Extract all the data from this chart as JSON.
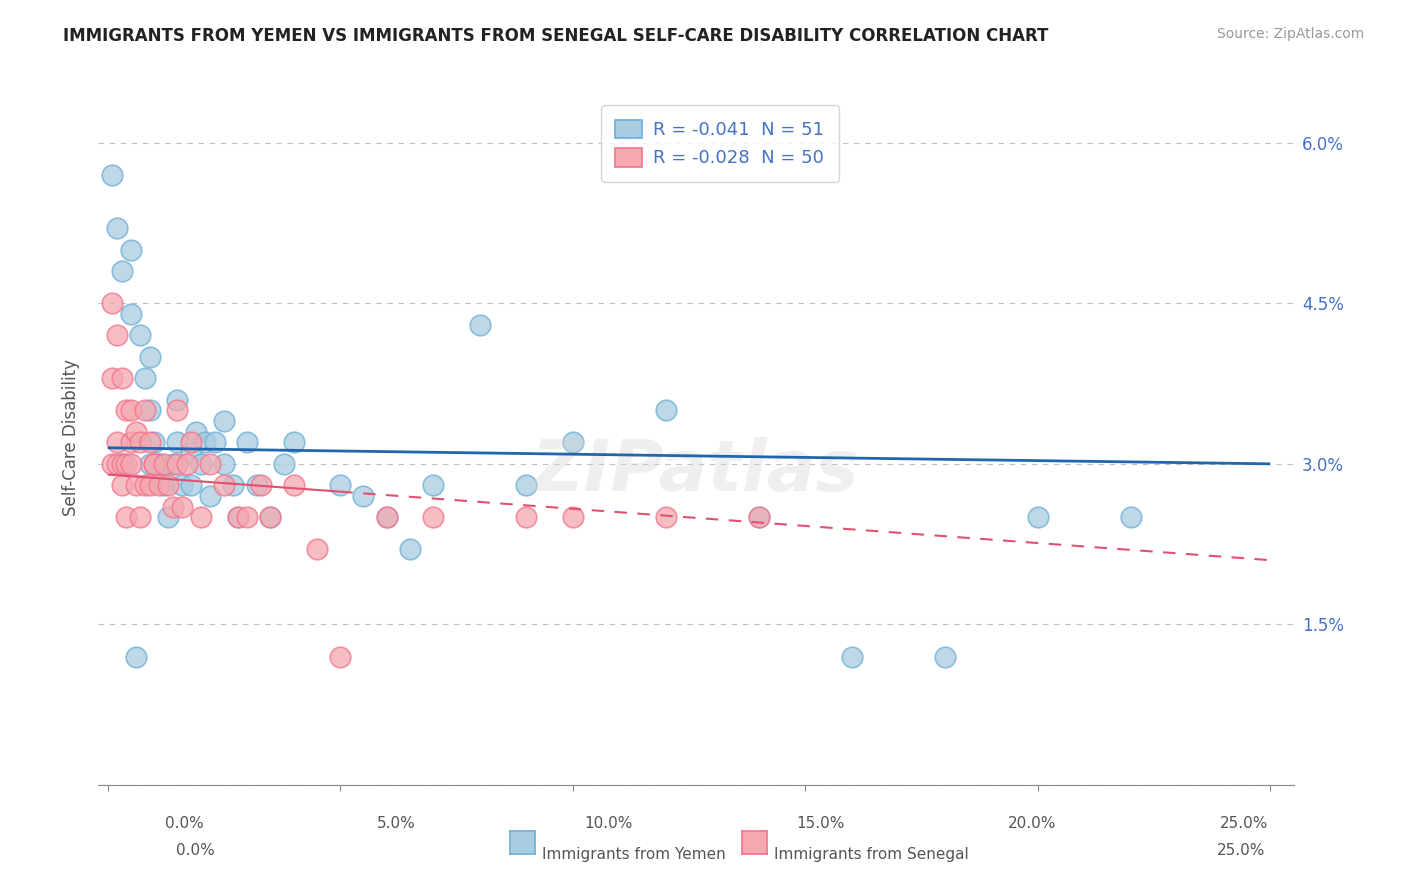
{
  "title": "IMMIGRANTS FROM YEMEN VS IMMIGRANTS FROM SENEGAL SELF-CARE DISABILITY CORRELATION CHART",
  "source": "Source: ZipAtlas.com",
  "ylabel": "Self-Care Disability",
  "xlim": [
    -0.002,
    0.255
  ],
  "ylim": [
    0.0,
    0.065
  ],
  "xticks": [
    0.0,
    0.05,
    0.1,
    0.15,
    0.2,
    0.25
  ],
  "xticklabels": [
    "0.0%",
    "5.0%",
    "10.0%",
    "15.0%",
    "20.0%",
    "25.0%"
  ],
  "yticks": [
    0.0,
    0.015,
    0.03,
    0.045,
    0.06
  ],
  "yticklabels_right": [
    "",
    "1.5%",
    "3.0%",
    "4.5%",
    "6.0%"
  ],
  "legend_r_yemen": "-0.041",
  "legend_n_yemen": "51",
  "legend_r_senegal": "-0.028",
  "legend_n_senegal": "50",
  "yemen_color": "#a8cce0",
  "senegal_color": "#f4a8b0",
  "yemen_edge_color": "#6baed6",
  "senegal_edge_color": "#f4728a",
  "trendline_yemen_color": "#2166ac",
  "trendline_senegal_color": "#e05070",
  "background_color": "#ffffff",
  "grid_color": "#bbbbbb",
  "right_axis_color": "#4472c4",
  "bottom_label_yemen": "Immigrants from Yemen",
  "bottom_label_senegal": "Immigrants from Senegal",
  "yemen_x": [
    0.001,
    0.002,
    0.003,
    0.005,
    0.005,
    0.007,
    0.008,
    0.009,
    0.009,
    0.01,
    0.011,
    0.012,
    0.013,
    0.015,
    0.015,
    0.016,
    0.018,
    0.018,
    0.019,
    0.02,
    0.021,
    0.022,
    0.023,
    0.025,
    0.025,
    0.027,
    0.028,
    0.03,
    0.032,
    0.035,
    0.038,
    0.05,
    0.055,
    0.06,
    0.065,
    0.07,
    0.08,
    0.09,
    0.1,
    0.12,
    0.14,
    0.16,
    0.18,
    0.2,
    0.22,
    0.003,
    0.006,
    0.009,
    0.011,
    0.014,
    0.04
  ],
  "yemen_y": [
    0.057,
    0.052,
    0.048,
    0.05,
    0.044,
    0.042,
    0.038,
    0.035,
    0.04,
    0.032,
    0.03,
    0.028,
    0.025,
    0.036,
    0.032,
    0.028,
    0.031,
    0.028,
    0.033,
    0.03,
    0.032,
    0.027,
    0.032,
    0.03,
    0.034,
    0.028,
    0.025,
    0.032,
    0.028,
    0.025,
    0.03,
    0.028,
    0.027,
    0.025,
    0.022,
    0.028,
    0.043,
    0.028,
    0.032,
    0.035,
    0.025,
    0.012,
    0.012,
    0.025,
    0.025,
    0.03,
    0.012,
    0.03,
    0.03,
    0.03,
    0.032
  ],
  "senegal_x": [
    0.001,
    0.001,
    0.002,
    0.002,
    0.003,
    0.003,
    0.004,
    0.004,
    0.005,
    0.005,
    0.006,
    0.006,
    0.007,
    0.007,
    0.008,
    0.008,
    0.009,
    0.009,
    0.01,
    0.01,
    0.011,
    0.012,
    0.013,
    0.014,
    0.015,
    0.015,
    0.016,
    0.017,
    0.018,
    0.02,
    0.022,
    0.025,
    0.028,
    0.03,
    0.033,
    0.035,
    0.04,
    0.045,
    0.05,
    0.06,
    0.07,
    0.09,
    0.1,
    0.12,
    0.14,
    0.001,
    0.002,
    0.003,
    0.004,
    0.005
  ],
  "senegal_y": [
    0.045,
    0.038,
    0.042,
    0.032,
    0.038,
    0.028,
    0.035,
    0.025,
    0.035,
    0.032,
    0.033,
    0.028,
    0.032,
    0.025,
    0.035,
    0.028,
    0.032,
    0.028,
    0.03,
    0.03,
    0.028,
    0.03,
    0.028,
    0.026,
    0.03,
    0.035,
    0.026,
    0.03,
    0.032,
    0.025,
    0.03,
    0.028,
    0.025,
    0.025,
    0.028,
    0.025,
    0.028,
    0.022,
    0.012,
    0.025,
    0.025,
    0.025,
    0.025,
    0.025,
    0.025,
    0.03,
    0.03,
    0.03,
    0.03,
    0.03
  ],
  "trendline_yemen_x0": 0.0,
  "trendline_yemen_y0": 0.0315,
  "trendline_yemen_x1": 0.25,
  "trendline_yemen_y1": 0.03,
  "trendline_senegal_x0": 0.0,
  "trendline_senegal_y0": 0.029,
  "trendline_senegal_x1": 0.25,
  "trendline_senegal_y1": 0.021
}
